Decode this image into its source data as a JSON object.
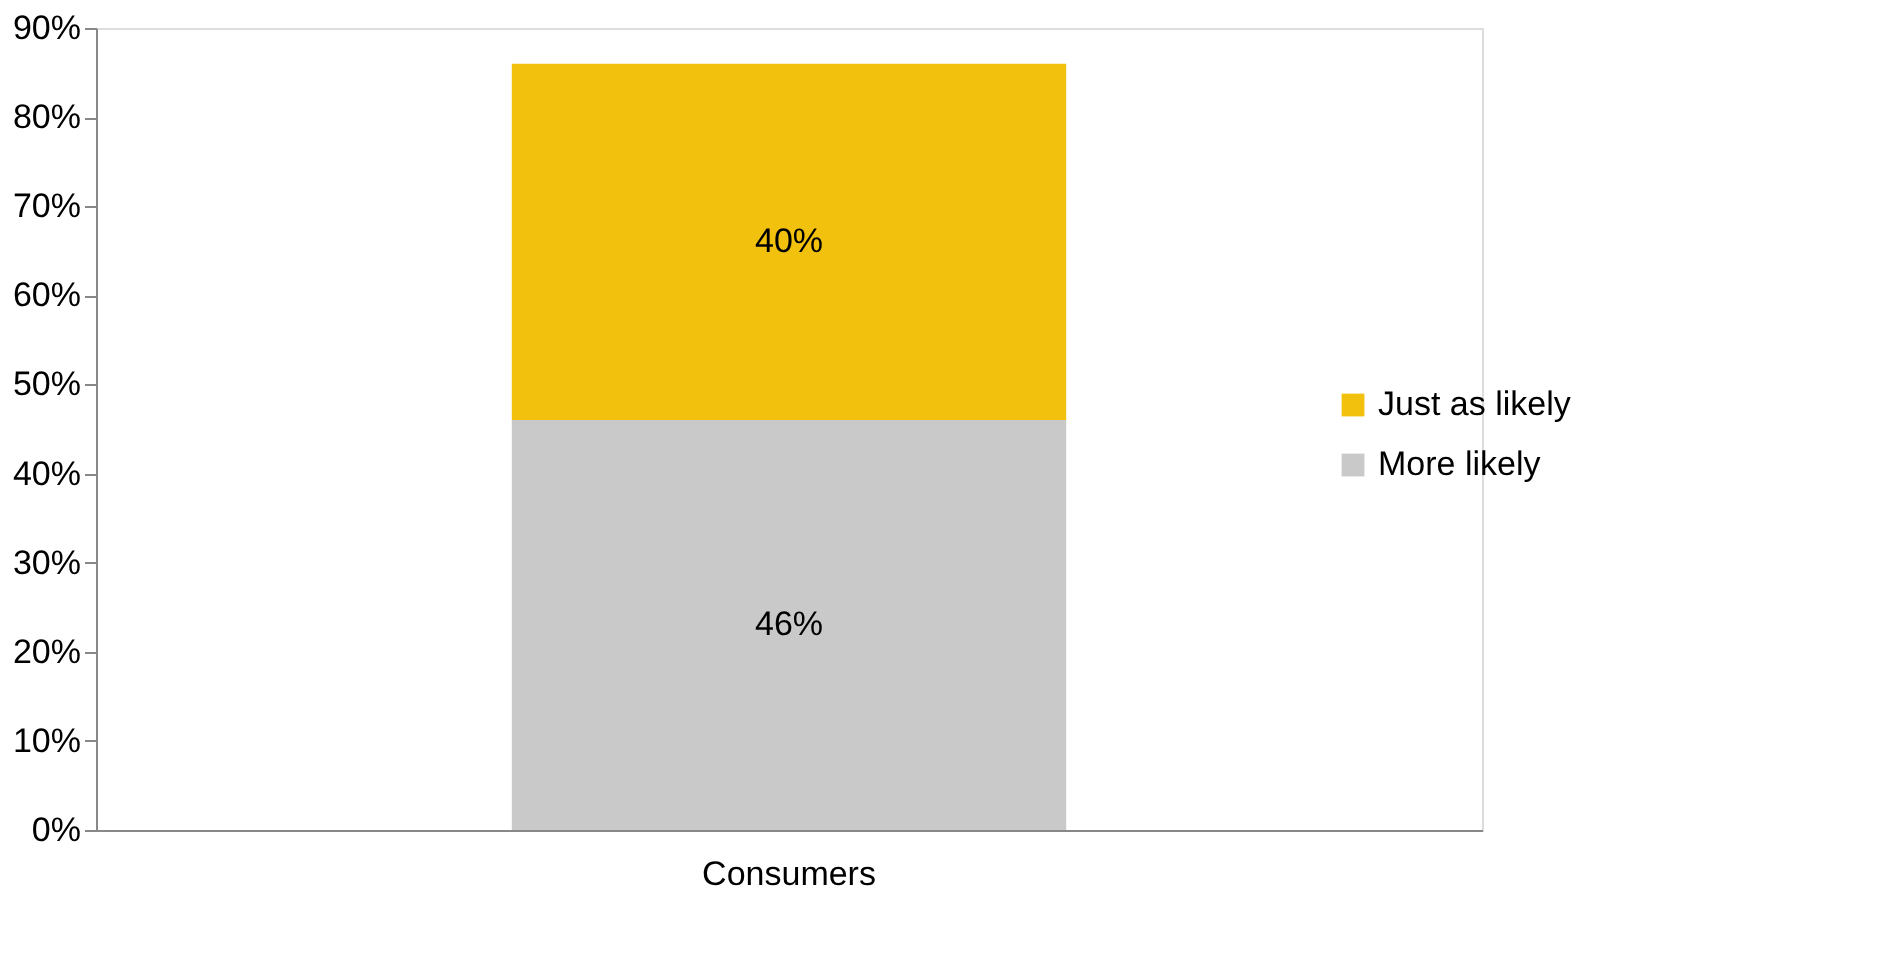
{
  "chart_data": {
    "type": "bar",
    "stacked": true,
    "categories": [
      "Consumers"
    ],
    "series": [
      {
        "name": "More likely",
        "color": "#c9c9c9",
        "values": [
          46
        ],
        "value_labels": [
          "46%"
        ]
      },
      {
        "name": "Just as likely",
        "color": "#f2c10e",
        "values": [
          40
        ],
        "value_labels": [
          "40%"
        ]
      }
    ],
    "ylim": [
      0,
      90
    ],
    "yticks": [
      {
        "value": 0,
        "label": "0%"
      },
      {
        "value": 10,
        "label": "10%"
      },
      {
        "value": 20,
        "label": "20%"
      },
      {
        "value": 30,
        "label": "30%"
      },
      {
        "value": 40,
        "label": "40%"
      },
      {
        "value": 50,
        "label": "50%"
      },
      {
        "value": 60,
        "label": "60%"
      },
      {
        "value": 70,
        "label": "70%"
      },
      {
        "value": 80,
        "label": "80%"
      },
      {
        "value": 90,
        "label": "90%"
      }
    ],
    "grid": false,
    "legend": "right"
  }
}
